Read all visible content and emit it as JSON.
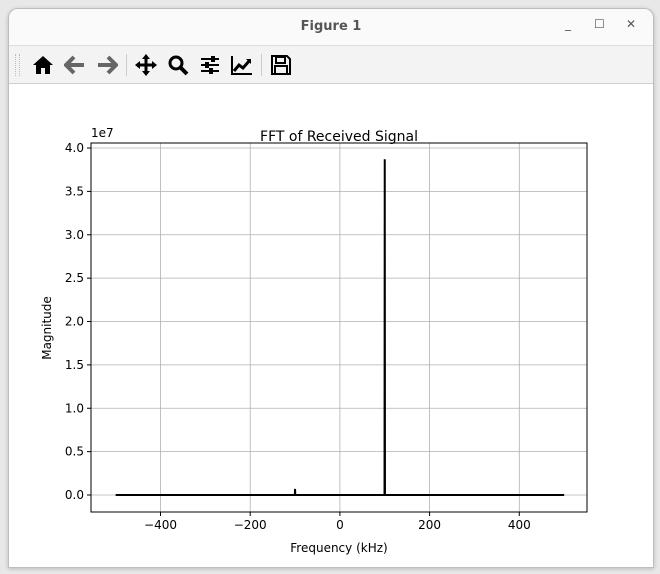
{
  "window": {
    "title": "Figure 1",
    "controls": [
      "minimize",
      "maximize",
      "close"
    ]
  },
  "toolbar": {
    "buttons": [
      {
        "icon": "home-icon"
      },
      {
        "icon": "back-arrow-icon"
      },
      {
        "icon": "forward-arrow-icon"
      },
      {
        "icon": "pan-move-icon"
      },
      {
        "icon": "zoom-magnifier-icon"
      },
      {
        "icon": "configure-subplots-icon"
      },
      {
        "icon": "edit-axis-icon"
      },
      {
        "icon": "save-floppy-icon"
      }
    ]
  },
  "chart_data": {
    "type": "line",
    "title": "FFT of Received Signal",
    "xlabel": "Frequency (kHz)",
    "ylabel": "Magnitude",
    "y_offset_label": "1e7",
    "xlim": [
      -555,
      551
    ],
    "ylim": [
      -0.196,
      4.058
    ],
    "xticks": [
      -400,
      -200,
      0,
      200,
      400
    ],
    "xtick_labels": [
      "−400",
      "−200",
      "0",
      "200",
      "400"
    ],
    "yticks": [
      0,
      0.5,
      1,
      1.5,
      2,
      2.5,
      3,
      3.5,
      4
    ],
    "ytick_labels": [
      "0.0",
      "0.5",
      "1.0",
      "1.5",
      "2.0",
      "2.5",
      "3.0",
      "3.5",
      "4.0"
    ],
    "grid": true,
    "color": "#000000",
    "series": [
      {
        "x": [
          -500,
          -100.5,
          -100,
          -99.5,
          99.5,
          100,
          100.5,
          500
        ],
        "y": [
          0,
          0,
          0.07,
          0,
          0,
          3.87,
          0,
          0
        ]
      }
    ]
  }
}
